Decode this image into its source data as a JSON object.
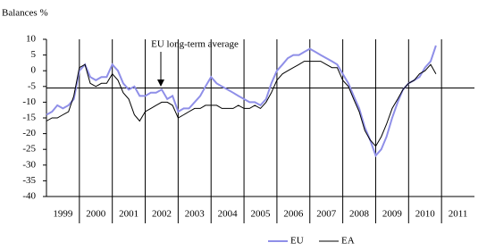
{
  "chart_data": {
    "type": "line",
    "y_label": "Balances %",
    "annotation": "EU long-term average",
    "long_term_average": -5.5,
    "xlim": [
      1999,
      2012
    ],
    "xticks": [
      2000,
      2001,
      2002,
      2003,
      2004,
      2005,
      2006,
      2007,
      2008,
      2009,
      2010,
      2011
    ],
    "x_labels": [
      1999,
      2000,
      2001,
      2002,
      2003,
      2004,
      2005,
      2006,
      2007,
      2008,
      2009,
      2010,
      2011
    ],
    "ylim": [
      -40,
      10
    ],
    "yticks": [
      10,
      5,
      0,
      -5,
      -10,
      -15,
      -20,
      -25,
      -30,
      -35,
      -40
    ],
    "x": [
      1999,
      1999.17,
      1999.33,
      1999.5,
      1999.67,
      1999.83,
      2000,
      2000.17,
      2000.33,
      2000.5,
      2000.67,
      2000.83,
      2001,
      2001.17,
      2001.33,
      2001.5,
      2001.67,
      2001.83,
      2002,
      2002.17,
      2002.33,
      2002.5,
      2002.67,
      2002.83,
      2003,
      2003.17,
      2003.33,
      2003.5,
      2003.67,
      2003.83,
      2004,
      2004.17,
      2004.33,
      2004.5,
      2004.67,
      2004.83,
      2005,
      2005.17,
      2005.33,
      2005.5,
      2005.67,
      2005.83,
      2006,
      2006.17,
      2006.33,
      2006.5,
      2006.67,
      2006.83,
      2007,
      2007.17,
      2007.33,
      2007.5,
      2007.67,
      2007.83,
      2008,
      2008.17,
      2008.33,
      2008.5,
      2008.67,
      2008.83,
      2009,
      2009.17,
      2009.33,
      2009.5,
      2009.67,
      2009.83,
      2010,
      2010.17,
      2010.33,
      2010.5,
      2010.67,
      2010.83
    ],
    "series": [
      {
        "name": "EU",
        "color": "#8f8fe8",
        "values": [
          -14,
          -13,
          -11,
          -12,
          -11,
          -9,
          0,
          2,
          -2,
          -3,
          -2,
          -2,
          2,
          0,
          -4,
          -6,
          -5,
          -8,
          -8,
          -7,
          -7,
          -6,
          -9,
          -8,
          -13,
          -12,
          -12,
          -10,
          -8,
          -5,
          -2,
          -4,
          -5,
          -6,
          -7,
          -8,
          -9,
          -10,
          -10,
          -11,
          -9,
          -4,
          0,
          2,
          4,
          5,
          5,
          6,
          7,
          6,
          5,
          4,
          3,
          2,
          -1,
          -4,
          -8,
          -12,
          -18,
          -22,
          -27,
          -25,
          -21,
          -15,
          -10,
          -6,
          -4,
          -3,
          -2,
          1,
          3,
          8
        ]
      },
      {
        "name": "EA",
        "color": "#000000",
        "values": [
          -16,
          -15,
          -15,
          -14,
          -13,
          -8,
          1,
          2,
          -4,
          -5,
          -4,
          -4,
          -1,
          -3,
          -7,
          -9,
          -14,
          -16,
          -13,
          -12,
          -11,
          -10,
          -10,
          -11,
          -15,
          -14,
          -13,
          -12,
          -12,
          -11,
          -11,
          -11,
          -12,
          -12,
          -12,
          -11,
          -12,
          -12,
          -11,
          -12,
          -10,
          -7,
          -3,
          -1,
          0,
          1,
          2,
          3,
          3,
          3,
          3,
          2,
          1,
          1,
          -3,
          -5,
          -9,
          -13,
          -19,
          -22,
          -24,
          -21,
          -17,
          -12,
          -9,
          -6,
          -4,
          -3,
          -1,
          0,
          2,
          -1
        ]
      }
    ]
  }
}
